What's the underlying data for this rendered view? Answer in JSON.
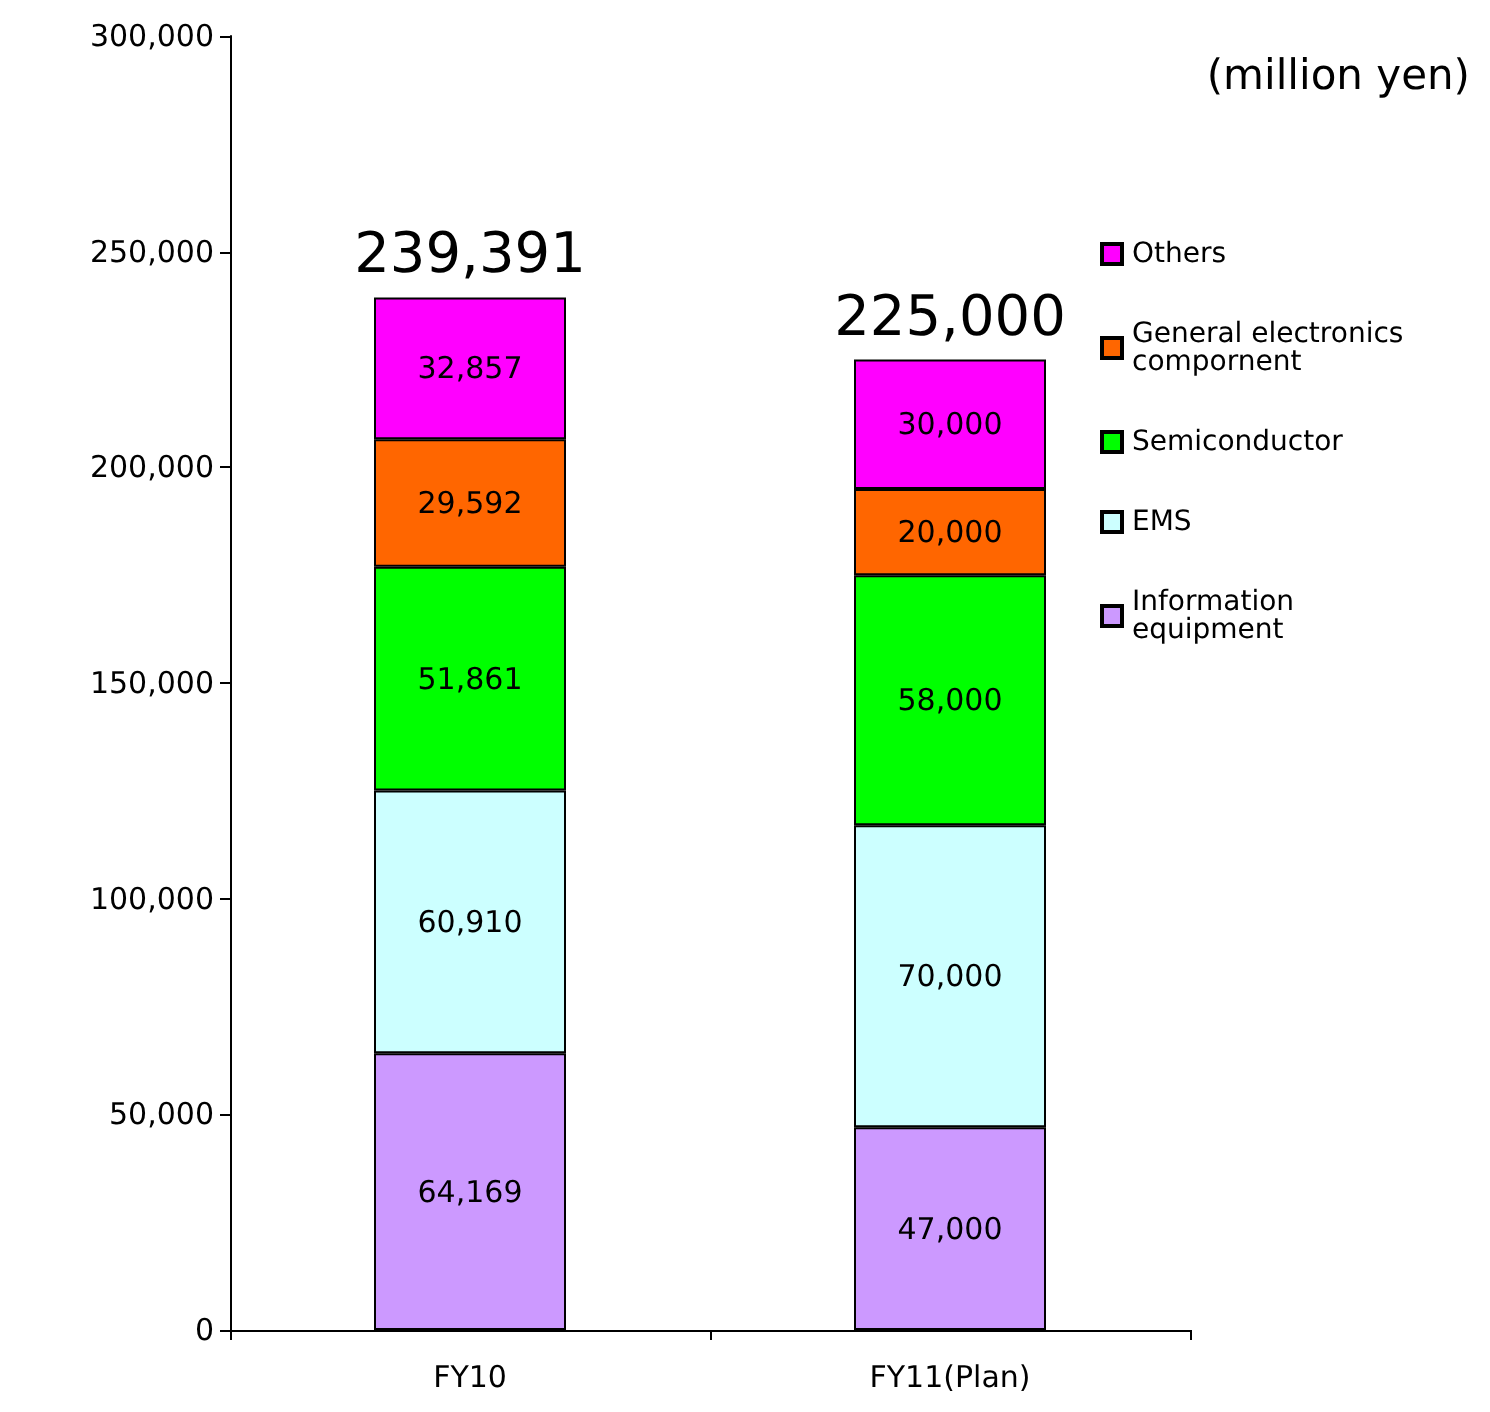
{
  "chart_data": {
    "type": "bar",
    "stacked": true,
    "categories": [
      "FY10",
      "FY11(Plan)"
    ],
    "series": [
      {
        "name": "Information equipment",
        "color": "#cc99ff",
        "values": [
          64169,
          47000
        ],
        "value_labels": [
          "64,169",
          "47,000"
        ]
      },
      {
        "name": "EMS",
        "color": "#ccffff",
        "values": [
          60910,
          70000
        ],
        "value_labels": [
          "60,910",
          "70,000"
        ]
      },
      {
        "name": "Semiconductor",
        "color": "#00ff00",
        "values": [
          51861,
          58000
        ],
        "value_labels": [
          "51,861",
          "58,000"
        ]
      },
      {
        "name": "General electronics compornent",
        "color": "#ff6600",
        "values": [
          29592,
          20000
        ],
        "value_labels": [
          "29,592",
          "20,000"
        ]
      },
      {
        "name": "Others",
        "color": "#ff00ff",
        "values": [
          32857,
          30000
        ],
        "value_labels": [
          "32,857",
          "30,000"
        ]
      }
    ],
    "totals": [
      "239,391",
      "225,000"
    ],
    "annotations": [
      "(million yen)"
    ],
    "ylim": [
      0,
      300000
    ],
    "yticks": [
      {
        "value": 0,
        "label": "0"
      },
      {
        "value": 50000,
        "label": "50,000"
      },
      {
        "value": 100000,
        "label": "100,000"
      },
      {
        "value": 150000,
        "label": "150,000"
      },
      {
        "value": 200000,
        "label": "200,000"
      },
      {
        "value": 250000,
        "label": "250,000"
      },
      {
        "value": 300000,
        "label": "300,000"
      }
    ],
    "grid": false,
    "legend": "right"
  }
}
